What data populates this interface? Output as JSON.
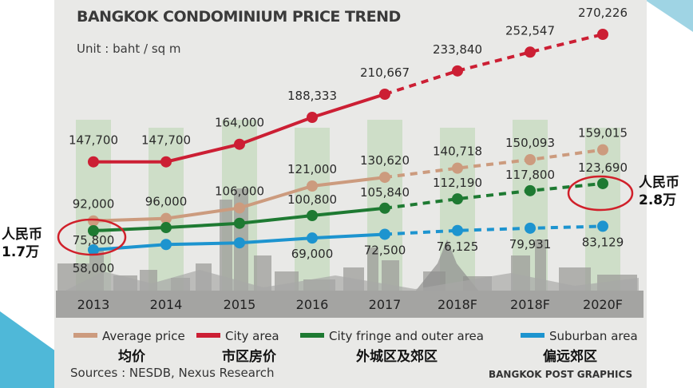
{
  "chart_data": {
    "type": "line",
    "title": "BANGKOK CONDOMINIUM PRICE TREND",
    "unit": "Unit : baht / sq m",
    "categories": [
      "2013",
      "2014",
      "2015",
      "2016",
      "2017",
      "2018F",
      "2018F",
      "2020F"
    ],
    "forecast_from_index": 4,
    "series": [
      {
        "name": "Average price",
        "color": "#cc9b7e",
        "values": [
          92000,
          96000,
          106000,
          121000,
          130620,
          140718,
          150093,
          159015
        ],
        "labels": [
          "92,000",
          "96,000",
          "106,000",
          "121,000",
          "130,620",
          "140,718",
          "150,093",
          "159,015"
        ]
      },
      {
        "name": "City area",
        "color": "#cc1f34",
        "values": [
          147700,
          147700,
          164000,
          188333,
          210667,
          233840,
          252547,
          270226
        ],
        "labels": [
          "147,700",
          "147,700",
          "164,000",
          "188,333",
          "210,667",
          "233,840",
          "252,547",
          "270,226"
        ]
      },
      {
        "name": "City fringe and outer area",
        "color": "#1e7a32",
        "values": [
          75800,
          81000,
          88000,
          100800,
          105840,
          112190,
          117800,
          123690
        ],
        "labels": [
          "75,800",
          "",
          "",
          "100,800",
          "105,840",
          "112,190",
          "117,800",
          "123,690"
        ]
      },
      {
        "name": "Suburban area",
        "color": "#1d94cf",
        "values": [
          58000,
          63000,
          64500,
          69000,
          72500,
          76125,
          79931,
          83129
        ],
        "labels": [
          "58,000",
          "",
          "",
          "69,000",
          "72,500",
          "76,125",
          "79,931",
          "83,129"
        ]
      }
    ]
  },
  "legend_zh": [
    "均价",
    "市区房价",
    "外城区及郊区",
    "偏远郊区"
  ],
  "annotations": {
    "left": {
      "line1": "人民币",
      "line2": "1.7万"
    },
    "right": {
      "line1": "人民币",
      "line2": "2.8万"
    }
  },
  "source": "Sources : NESDB, Nexus Research",
  "credit": "BANGKOK POST GRAPHICS"
}
